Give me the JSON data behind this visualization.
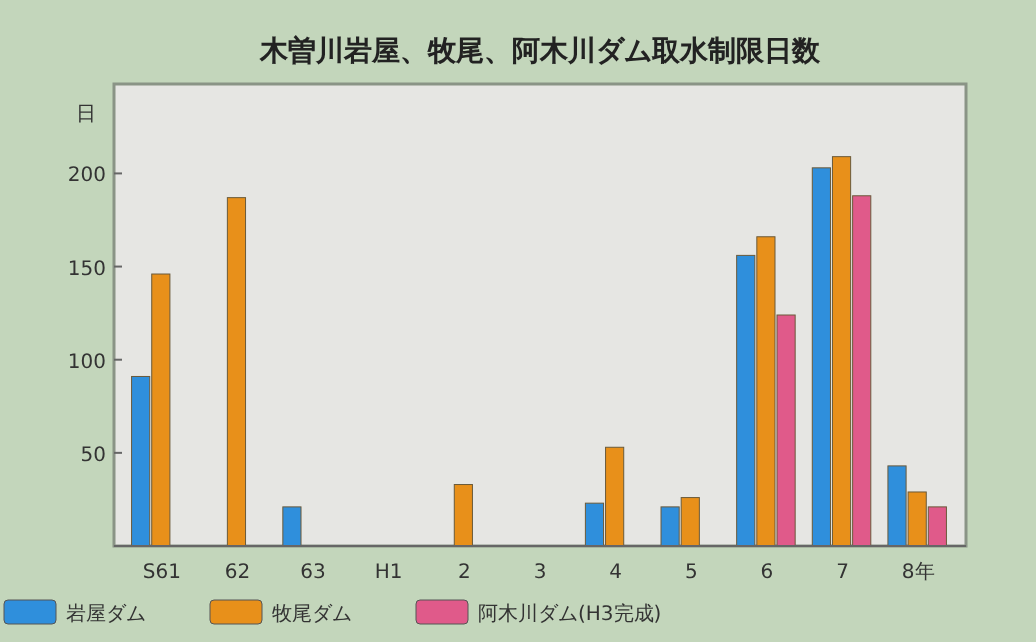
{
  "chart_data": {
    "type": "bar",
    "title": "木曽川岩屋、牧尾、阿木川ダム取水制限日数",
    "ylabel": "日",
    "categories": [
      "S61",
      "62",
      "63",
      "H1",
      "2",
      "3",
      "4",
      "5",
      "6",
      "7",
      "8年"
    ],
    "series": [
      {
        "name": "岩屋ダム",
        "color": "#2f8fdc",
        "values": [
          91,
          null,
          21,
          null,
          null,
          null,
          23,
          21,
          156,
          203,
          43
        ]
      },
      {
        "name": "牧尾ダム",
        "color": "#e8901a",
        "values": [
          146,
          187,
          null,
          null,
          33,
          null,
          53,
          26,
          166,
          209,
          29
        ]
      },
      {
        "name": "阿木川ダム(H3完成)",
        "color": "#e05a8a",
        "values": [
          null,
          null,
          null,
          null,
          null,
          null,
          null,
          null,
          124,
          188,
          21
        ]
      }
    ],
    "ylim": [
      0,
      248
    ],
    "yticks": [
      50,
      100,
      150,
      200
    ],
    "grid": false,
    "legend": "bottom"
  }
}
